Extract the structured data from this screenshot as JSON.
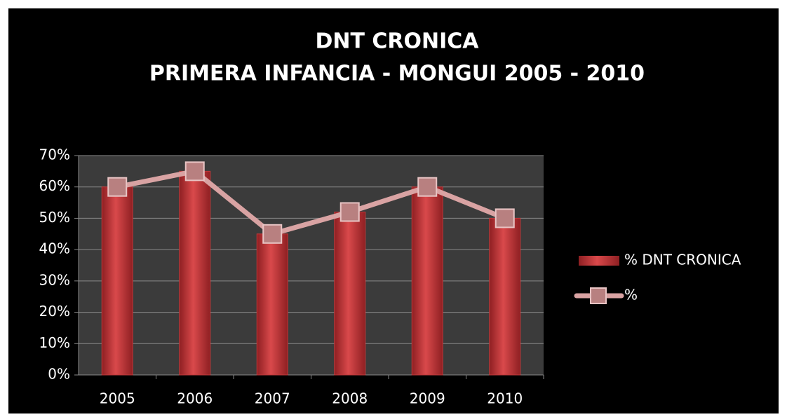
{
  "chart_data": {
    "type": "bar",
    "title": "DNT CRONICA",
    "subtitle": "PRIMERA INFANCIA - MONGUI 2005 - 2010",
    "categories": [
      "2005",
      "2006",
      "2007",
      "2008",
      "2009",
      "2010"
    ],
    "series": [
      {
        "name": "% DNT CRONICA",
        "type": "bar",
        "color": "#c0393b",
        "values": [
          60,
          65,
          45,
          52,
          60,
          50
        ]
      },
      {
        "name": "%",
        "type": "line",
        "color": "#d9a3a3",
        "values": [
          60,
          65,
          45,
          52,
          60,
          50
        ]
      }
    ],
    "ylim": [
      0,
      70
    ],
    "yticks": [
      {
        "value": 0,
        "label": "0%"
      },
      {
        "value": 10,
        "label": "10%"
      },
      {
        "value": 20,
        "label": "20%"
      },
      {
        "value": 30,
        "label": "30%"
      },
      {
        "value": 40,
        "label": "40%"
      },
      {
        "value": 50,
        "label": "50%"
      },
      {
        "value": 60,
        "label": "60%"
      },
      {
        "value": 70,
        "label": "70%"
      }
    ],
    "grid": true,
    "legend": "right"
  }
}
